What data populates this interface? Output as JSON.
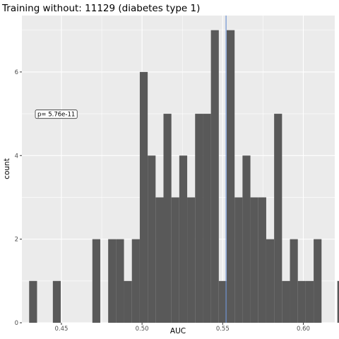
{
  "chart_data": {
    "type": "histogram",
    "title": "Training without: 11129 (diabetes type 1)",
    "xlabel": "AUC",
    "ylabel": "count",
    "xlim": [
      0.4255,
      0.6195
    ],
    "ylim": [
      0,
      7.35
    ],
    "x_ticks": [
      0.45,
      0.5,
      0.55,
      0.6
    ],
    "x_tick_labels": [
      "0.45",
      "0.50",
      "0.55",
      "0.60"
    ],
    "y_ticks": [
      0,
      2,
      4,
      6
    ],
    "y_tick_labels": [
      "0",
      "2",
      "4",
      "6"
    ],
    "bin_start": 0.43,
    "bin_width": 0.0049,
    "counts": [
      1,
      0,
      0,
      1,
      0,
      0,
      0,
      0,
      2,
      0,
      2,
      2,
      1,
      2,
      6,
      4,
      3,
      5,
      3,
      4,
      3,
      5,
      5,
      7,
      1,
      7,
      3,
      4,
      3,
      3,
      2,
      5,
      1,
      2,
      1,
      1,
      2,
      0,
      0,
      1
    ],
    "reference_line": {
      "x": 0.5521,
      "color": "#6f93d2"
    },
    "annotation": {
      "text": "p= 5.76e-11",
      "x": 0.4468,
      "y": 4.99
    },
    "grid": true,
    "colors": {
      "bar": "#595959",
      "panel": "#ebebeb",
      "grid": "#ffffff"
    }
  }
}
